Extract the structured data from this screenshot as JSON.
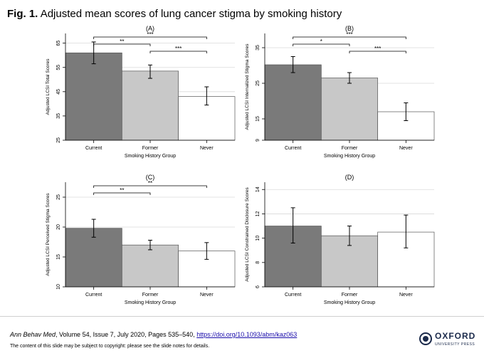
{
  "figure": {
    "label": "Fig. 1.",
    "title": "Adjusted mean scores of lung cancer stigma by smoking history"
  },
  "colors": {
    "bars": [
      "#7a7a7a",
      "#c8c8c8",
      "#ffffff"
    ],
    "plot_bg": "#ffffff",
    "grid": "#dadada",
    "link": "#1a0dab",
    "publisher": "#1b2a4b"
  },
  "chart_data": [
    {
      "panel": "(A)",
      "type": "bar",
      "categories": [
        "Current",
        "Former",
        "Never"
      ],
      "values": [
        61.0,
        53.5,
        43.0
      ],
      "errors_low": [
        56.5,
        50.5,
        39.5
      ],
      "errors_high": [
        65.5,
        56.0,
        47.0
      ],
      "ylim": [
        25,
        69
      ],
      "yticks": [
        25,
        35,
        45,
        55,
        65
      ],
      "ylabel": "Adjusted LCSI Total Scores",
      "xlabel": "Smoking History Group",
      "brackets": [
        {
          "from": 0,
          "to": 2,
          "label": "***",
          "level": 0
        },
        {
          "from": 0,
          "to": 1,
          "label": "**",
          "level": 1
        },
        {
          "from": 1,
          "to": 2,
          "label": "***",
          "level": 2
        }
      ]
    },
    {
      "panel": "(B)",
      "type": "bar",
      "categories": [
        "Current",
        "Former",
        "Never"
      ],
      "values": [
        30.2,
        26.5,
        17.0
      ],
      "errors_low": [
        28.0,
        25.0,
        14.5
      ],
      "errors_high": [
        32.5,
        28.0,
        19.5
      ],
      "ylim": [
        9,
        39
      ],
      "yticks": [
        9,
        15,
        25,
        35
      ],
      "ylabel": "Adjusted LCSI Internalized Stigma Scores",
      "xlabel": "Smoking History Group",
      "brackets": [
        {
          "from": 0,
          "to": 2,
          "label": "***",
          "level": 0
        },
        {
          "from": 0,
          "to": 1,
          "label": "*",
          "level": 1
        },
        {
          "from": 1,
          "to": 2,
          "label": "***",
          "level": 2
        }
      ]
    },
    {
      "panel": "(C)",
      "type": "bar",
      "categories": [
        "Current",
        "Former",
        "Never"
      ],
      "values": [
        19.8,
        17.0,
        16.0
      ],
      "errors_low": [
        18.3,
        16.2,
        14.6
      ],
      "errors_high": [
        21.3,
        17.8,
        17.4
      ],
      "ylim": [
        10,
        27.5
      ],
      "yticks": [
        10,
        15,
        20,
        25
      ],
      "ylabel": "Adjusted LCSI Perceived Stigma Scores",
      "xlabel": "Smoking History Group",
      "brackets": [
        {
          "from": 0,
          "to": 2,
          "label": "**",
          "level": 0
        },
        {
          "from": 0,
          "to": 1,
          "label": "**",
          "level": 1
        }
      ]
    },
    {
      "panel": "(D)",
      "type": "bar",
      "categories": [
        "Current",
        "Former",
        "Never"
      ],
      "values": [
        11.0,
        10.2,
        10.5
      ],
      "errors_low": [
        9.6,
        9.4,
        9.2
      ],
      "errors_high": [
        12.5,
        11.0,
        11.9
      ],
      "ylim": [
        6,
        14.6
      ],
      "yticks": [
        6,
        8,
        10,
        12,
        14
      ],
      "ylabel": "Adjusted LCSI Constrained Disclosure Scores",
      "xlabel": "Smoking History Group",
      "brackets": []
    }
  ],
  "footer": {
    "journal": "Ann Behav Med",
    "citation_rest": ", Volume 54, Issue 7, July 2020, Pages 535–540,",
    "doi": "https://doi.org/10.1093/abm/kaz063",
    "copyright": "The content of this slide may be subject to copyright: please see the slide notes for details.",
    "publisher_name": "OXFORD",
    "publisher_sub": "UNIVERSITY PRESS"
  }
}
